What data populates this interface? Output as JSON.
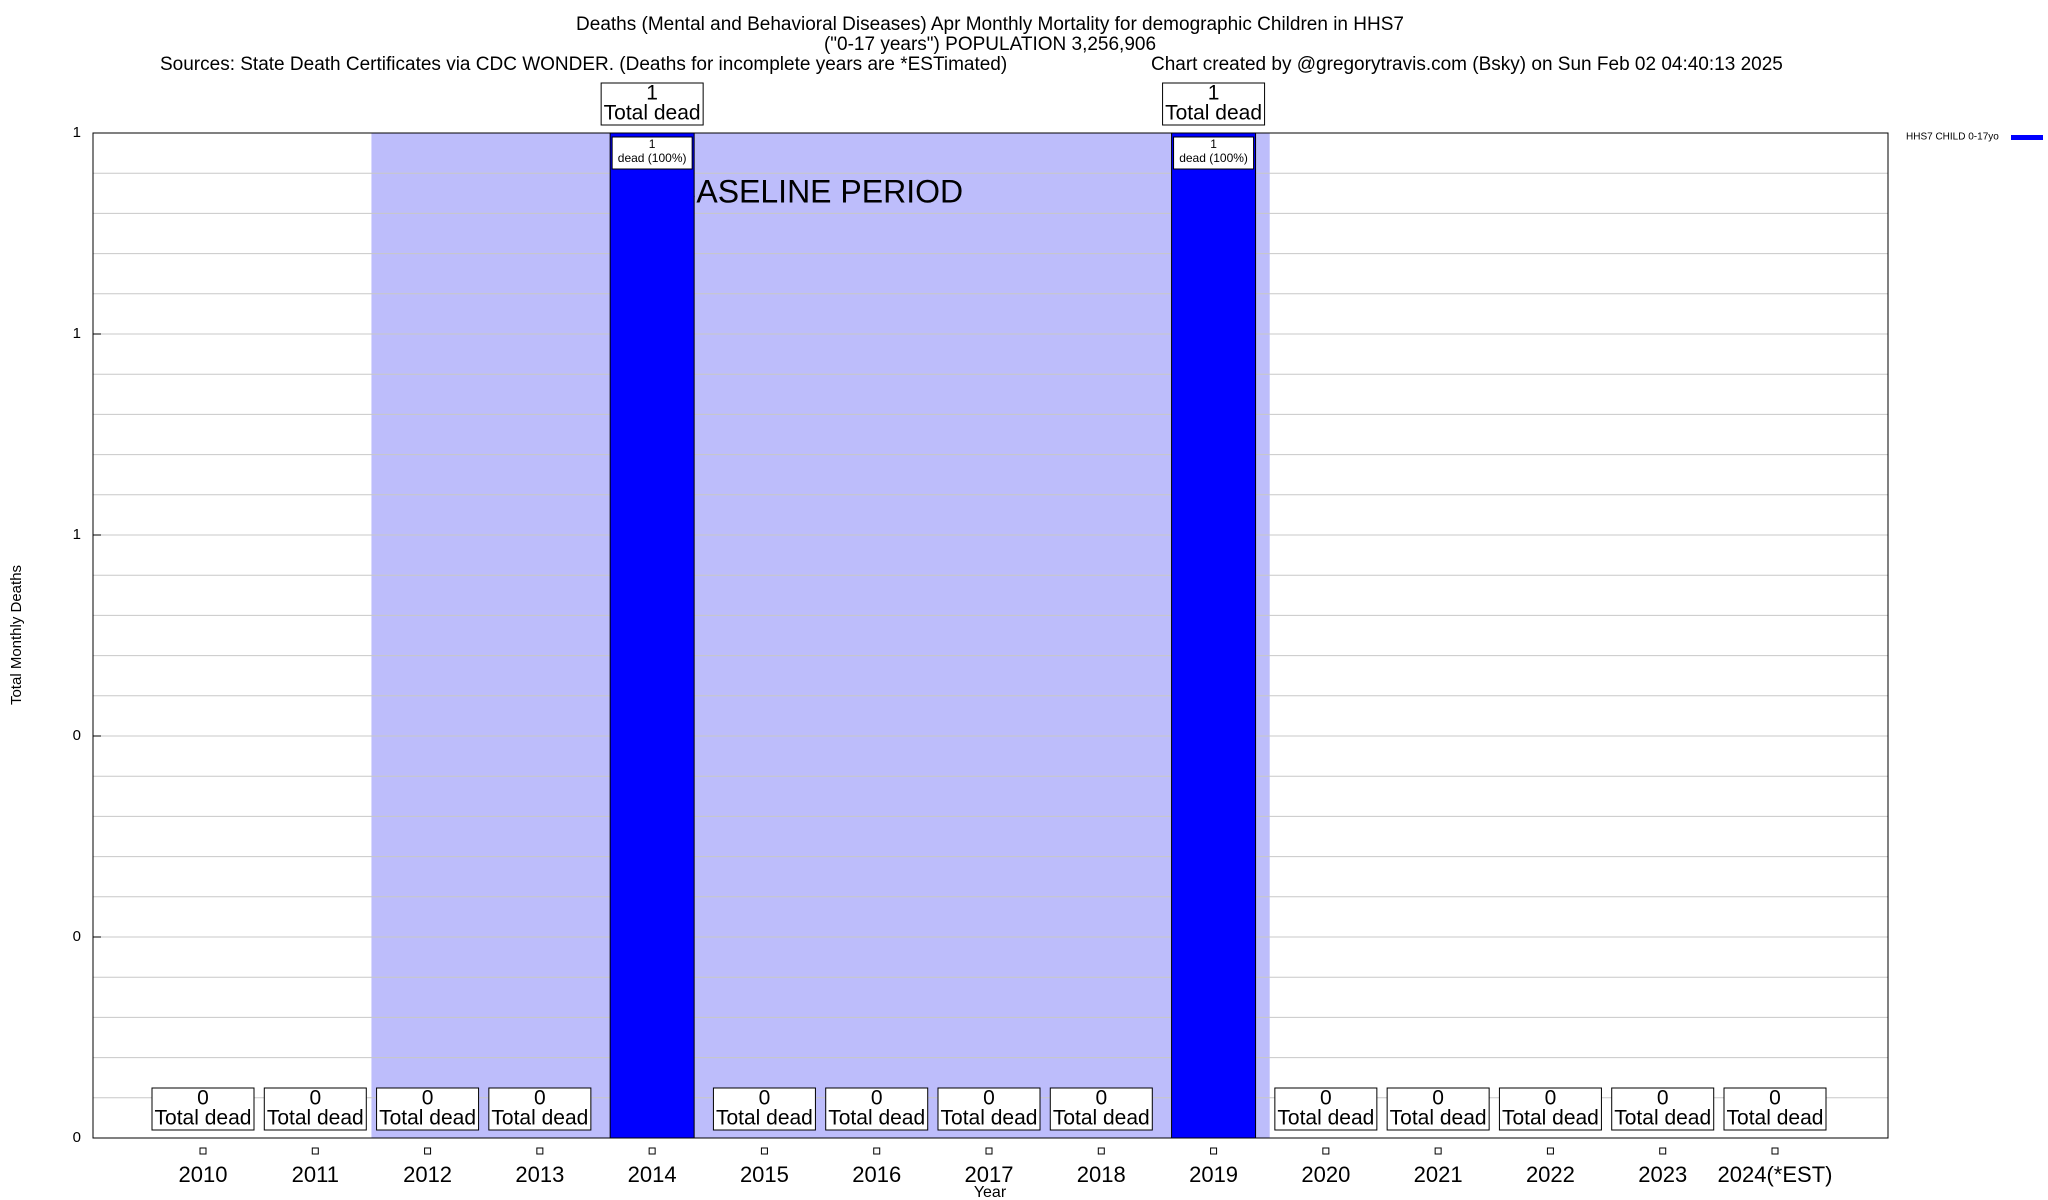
{
  "chart_data": {
    "type": "bar",
    "title": "Deaths (Mental and Behavioral Diseases) Apr Monthly Mortality for demographic Children in HHS7",
    "subtitle": "(\"0-17 years\") POPULATION 3,256,906",
    "source": "Sources: State Death Certificates via CDC WONDER. (Deaths for incomplete years are *ESTimated)",
    "credit": "Chart created by @gregorytravis.com (Bsky) on Sun Feb 02 04:40:13 2025",
    "x_label": "Year",
    "y_label": "Total Monthly Deaths",
    "categories": [
      "2010",
      "2011",
      "2012",
      "2013",
      "2014",
      "2015",
      "2016",
      "2017",
      "2018",
      "2019",
      "2020",
      "2021",
      "2022",
      "2023",
      "2024(*EST)"
    ],
    "series": [
      {
        "name": "HHS7 CHILD 0-17yo",
        "color": "#0000ff",
        "values": [
          0,
          0,
          0,
          0,
          1,
          0,
          0,
          0,
          0,
          1,
          0,
          0,
          0,
          0,
          0
        ],
        "inner_labels": [
          null,
          null,
          null,
          null,
          "dead (100%)",
          null,
          null,
          null,
          null,
          "dead (100%)",
          null,
          null,
          null,
          null,
          null
        ]
      }
    ],
    "total_label": "Total dead",
    "shaded_region": {
      "label": "BASELINE PERIOD",
      "from": "2012",
      "to": "2019",
      "color": "#bdbdfb"
    },
    "ylim": [
      0,
      1
    ],
    "yticks": [
      0,
      {
        "value": 0.2,
        "label": "0"
      },
      {
        "value": 0.4,
        "label": "0"
      },
      {
        "value": 0.6,
        "label": "1"
      },
      {
        "value": 0.8,
        "label": "1"
      },
      1
    ],
    "grid": true,
    "legend": "top-right"
  }
}
